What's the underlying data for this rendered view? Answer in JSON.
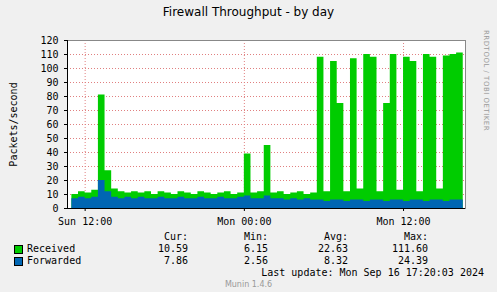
{
  "chart_data": {
    "type": "area",
    "title": "Firewall Throughput - by day",
    "y_label": "Packets/second",
    "x": [
      -1,
      -0.5,
      0,
      0.5,
      1,
      1.5,
      2,
      2.5,
      3,
      3.5,
      4,
      4.5,
      5,
      5.5,
      6,
      6.5,
      7,
      7.5,
      8,
      8.5,
      9,
      9.5,
      10,
      10.5,
      11,
      11.5,
      12,
      12.5,
      13,
      13.5,
      14,
      14.5,
      15,
      15.5,
      16,
      16.5,
      17,
      17.5,
      18,
      18.5,
      19,
      19.5,
      20,
      20.5,
      21,
      21.5,
      22,
      22.5,
      23,
      23.5,
      24,
      24.5,
      25,
      25.5,
      26,
      26.5,
      27,
      27.5,
      28,
      28.5
    ],
    "xlim": [
      -1.33,
      28.67
    ],
    "xticks": [
      {
        "value": 0,
        "label": "Sun 12:00"
      },
      {
        "value": 12,
        "label": "Mon 00:00"
      },
      {
        "value": 24,
        "label": "Mon 12:00"
      }
    ],
    "ylim": [
      0,
      120
    ],
    "yticks": [
      0,
      10,
      20,
      30,
      40,
      50,
      60,
      70,
      80,
      90,
      100,
      110,
      120
    ],
    "grid": true,
    "legend": "bottom",
    "stats_headers": [
      "Cur:",
      "Min:",
      "Avg:",
      "Max:"
    ],
    "series": [
      {
        "name": "Received",
        "color": "#00cc00",
        "values": [
          10,
          12,
          11,
          13,
          81,
          27,
          14,
          12,
          11,
          12,
          11,
          12,
          10,
          12,
          11,
          10,
          12,
          11,
          10,
          12,
          11,
          10,
          11,
          12,
          10,
          11,
          39,
          11,
          12,
          45,
          11,
          12,
          10,
          11,
          12,
          10,
          11,
          108,
          12,
          105,
          75,
          12,
          107,
          14,
          110,
          108,
          12,
          75,
          110,
          13,
          108,
          105,
          12,
          110,
          108,
          14,
          109,
          110,
          111,
          11
        ],
        "stats": [
          "10.59",
          "6.15",
          "22.63",
          "111.60"
        ]
      },
      {
        "name": "Forwarded",
        "color": "#0066b3",
        "values": [
          7,
          8,
          7,
          8,
          20,
          12,
          8,
          7,
          8,
          7,
          8,
          7,
          7,
          8,
          7,
          7,
          8,
          7,
          7,
          8,
          7,
          7,
          8,
          7,
          7,
          8,
          9,
          7,
          7,
          9,
          7,
          7,
          6,
          7,
          6,
          7,
          6,
          6,
          5,
          6,
          6,
          5,
          6,
          6,
          5,
          6,
          6,
          5,
          6,
          6,
          5,
          6,
          6,
          5,
          6,
          6,
          5,
          6,
          6,
          8
        ],
        "stats": [
          "7.86",
          "2.56",
          "8.32",
          "24.39"
        ]
      }
    ],
    "last_update": "Last update: Mon Sep 16 17:20:03 2024",
    "footer": "Munin 1.4.6",
    "watermark": "RRDTOOL / TOBI OETIKER"
  }
}
